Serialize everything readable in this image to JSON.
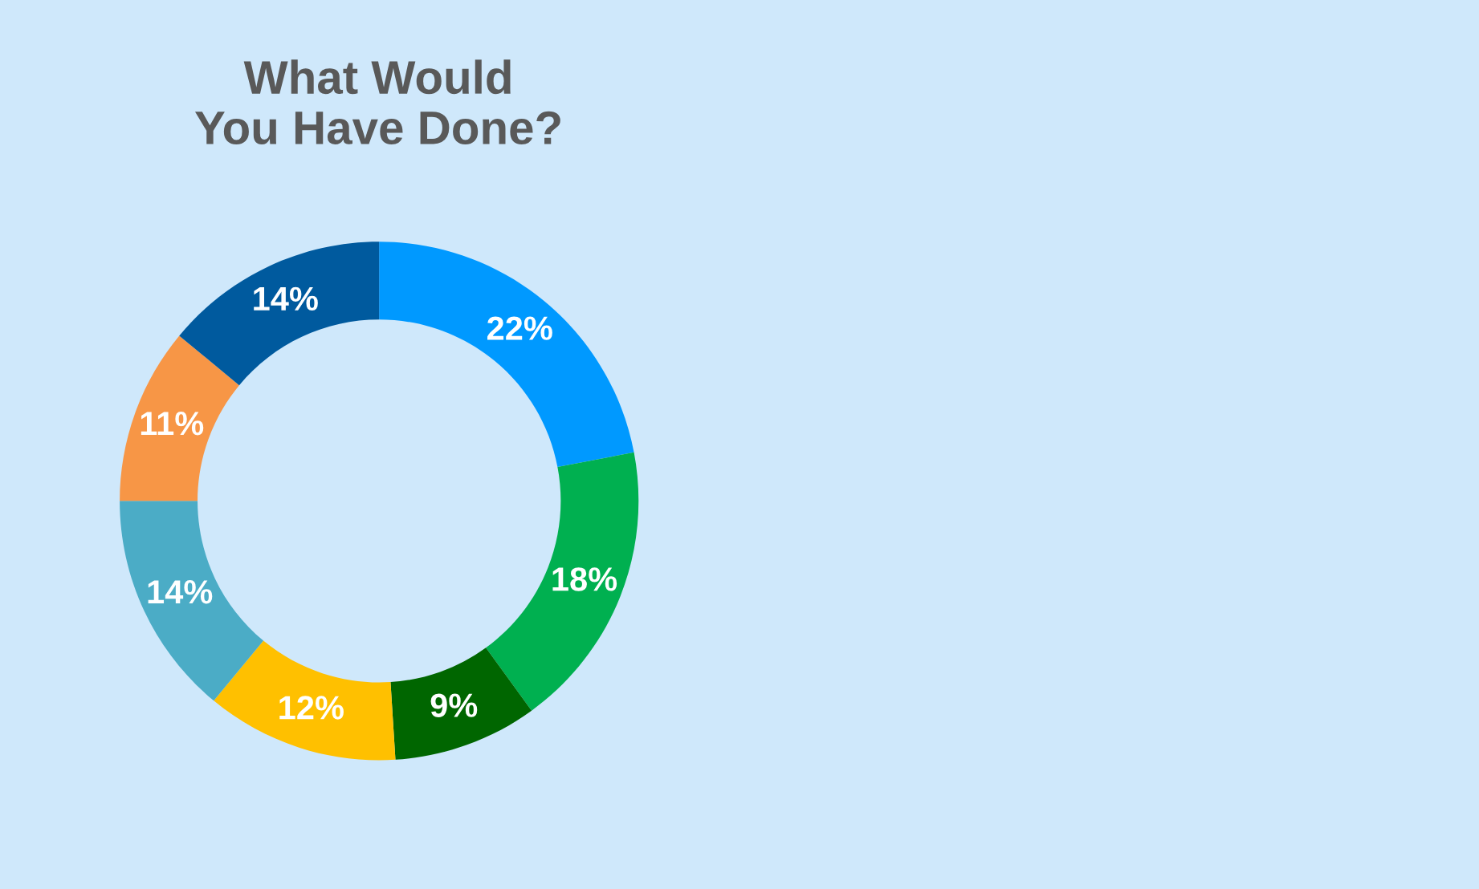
{
  "chart_data": {
    "type": "donut",
    "title": "What Would\nYou Have Done?",
    "categories": [
      null,
      null,
      null,
      null,
      null,
      null,
      null
    ],
    "values": [
      22,
      18,
      9,
      12,
      14,
      11,
      14
    ],
    "colors": [
      "#0099ff",
      "#00b050",
      "#006600",
      "#ffc000",
      "#4bacc6",
      "#f79646",
      "#005a9e"
    ],
    "value_labels": [
      "22%",
      "18%",
      "9%",
      "12%",
      "14%",
      "11%",
      "14%"
    ]
  }
}
